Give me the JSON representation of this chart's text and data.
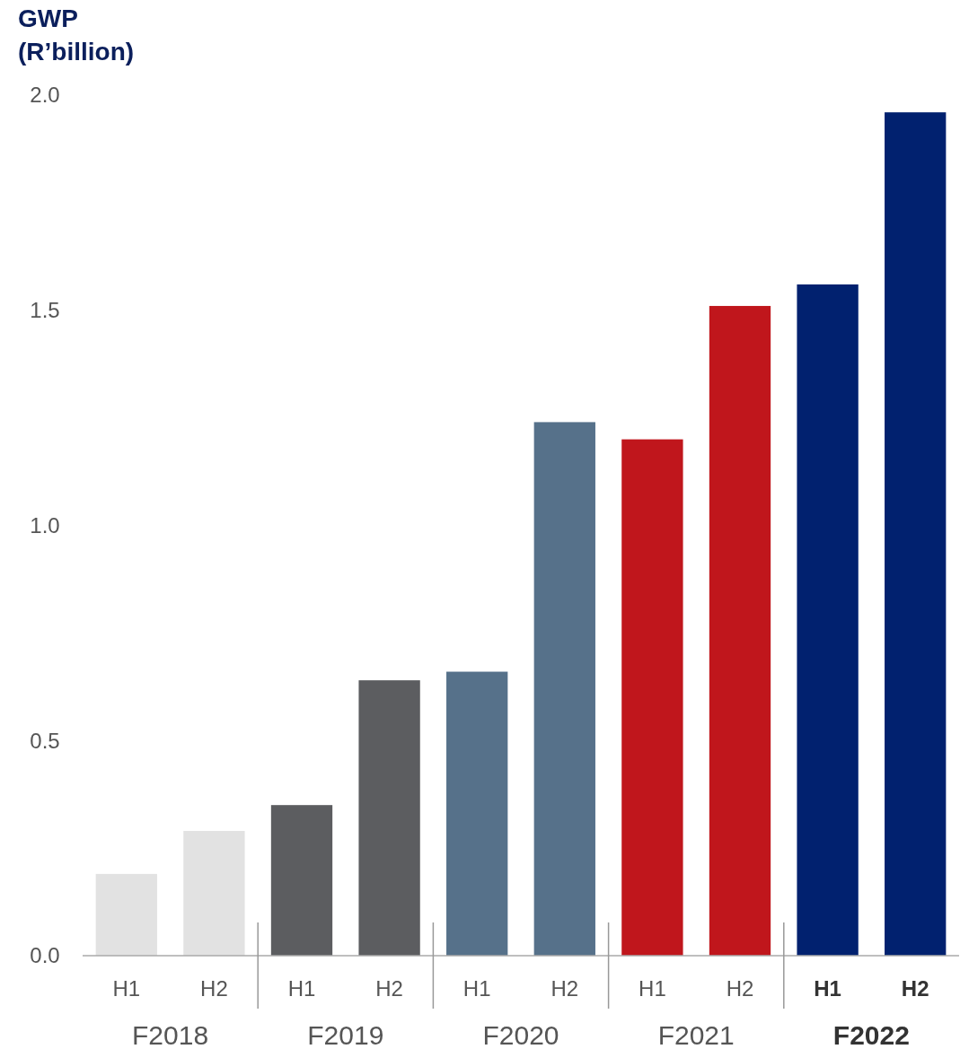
{
  "chart_data": {
    "type": "bar",
    "ylabel": "GWP (R’billion)",
    "categories": [
      "H1",
      "H2",
      "H1",
      "H2",
      "H1",
      "H2",
      "H1",
      "H2",
      "H1",
      "H2"
    ],
    "values": [
      0.19,
      0.29,
      0.35,
      0.64,
      0.66,
      1.24,
      1.2,
      1.51,
      1.56,
      1.96
    ],
    "colors": [
      "#e2e2e2",
      "#e2e2e2",
      "#5c5d60",
      "#5c5d60",
      "#56718a",
      "#56718a",
      "#c0161c",
      "#c0161c",
      "#01216f",
      "#01216f"
    ],
    "ylim": [
      0,
      2
    ],
    "yticks": [
      {
        "value": 0,
        "label": "0.0"
      },
      {
        "value": 0.5,
        "label": "0.5"
      },
      {
        "value": 1,
        "label": "1.0"
      },
      {
        "value": 1.5,
        "label": "1.5"
      },
      {
        "value": 2,
        "label": "2.0"
      }
    ],
    "annotations": [
      "F2018",
      "F2019",
      "F2020",
      "F2021",
      "F2022"
    ],
    "grid": false
  }
}
